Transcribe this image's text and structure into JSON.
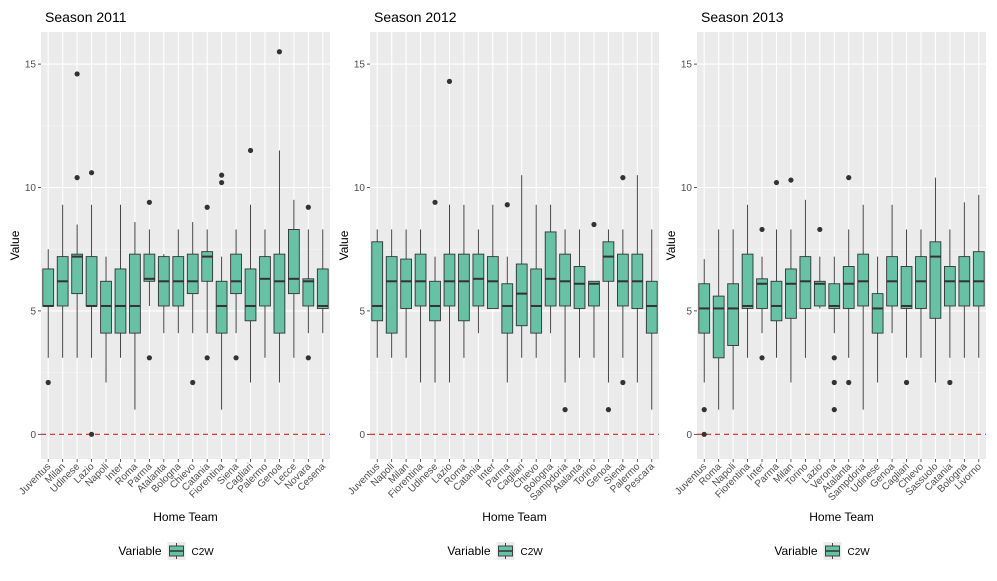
{
  "chart_data": [
    {
      "type": "boxplot",
      "title": "Season 2011",
      "xlabel": "Home Team",
      "ylabel": "Value",
      "ylim": [
        -1.0,
        16.3
      ],
      "yticks": [
        0,
        5,
        10,
        15
      ],
      "reference_line": {
        "y": 0,
        "color": "#e41a1c",
        "style": "dashed"
      },
      "legend": {
        "title": "Variable",
        "entries": [
          "C2W"
        ],
        "position": "bottom"
      },
      "fill": "#66c2a5",
      "series": [
        {
          "name": "Juventus",
          "q1": 5.2,
          "median": 5.2,
          "q3": 6.7,
          "whisker_low": 3.1,
          "whisker_high": 7.5,
          "outliers": [
            2.1
          ]
        },
        {
          "name": "Milan",
          "q1": 5.2,
          "median": 6.2,
          "q3": 7.2,
          "whisker_low": 3.1,
          "whisker_high": 9.3,
          "outliers": []
        },
        {
          "name": "Udinese",
          "q1": 5.7,
          "median": 7.2,
          "q3": 7.3,
          "whisker_low": 3.1,
          "whisker_high": 8.5,
          "outliers": [
            14.6,
            10.4
          ]
        },
        {
          "name": "Lazio",
          "q1": 5.2,
          "median": 5.2,
          "q3": 7.2,
          "whisker_low": 3.1,
          "whisker_high": 9.3,
          "outliers": [
            10.6,
            0.0
          ]
        },
        {
          "name": "Napoli",
          "q1": 4.1,
          "median": 5.2,
          "q3": 6.2,
          "whisker_low": 2.1,
          "whisker_high": 7.2,
          "outliers": []
        },
        {
          "name": "Inter",
          "q1": 4.1,
          "median": 5.2,
          "q3": 6.7,
          "whisker_low": 3.1,
          "whisker_high": 9.3,
          "outliers": []
        },
        {
          "name": "Roma",
          "q1": 4.1,
          "median": 5.2,
          "q3": 7.3,
          "whisker_low": 1.0,
          "whisker_high": 8.6,
          "outliers": []
        },
        {
          "name": "Parma",
          "q1": 6.2,
          "median": 6.3,
          "q3": 7.3,
          "whisker_low": 5.2,
          "whisker_high": 8.3,
          "outliers": [
            9.4,
            3.1
          ]
        },
        {
          "name": "Atalanta",
          "q1": 5.2,
          "median": 6.2,
          "q3": 7.2,
          "whisker_low": 4.1,
          "whisker_high": 7.3,
          "outliers": []
        },
        {
          "name": "Bologna",
          "q1": 5.2,
          "median": 6.2,
          "q3": 7.2,
          "whisker_low": 4.1,
          "whisker_high": 8.3,
          "outliers": []
        },
        {
          "name": "Chievo",
          "q1": 5.7,
          "median": 6.2,
          "q3": 7.3,
          "whisker_low": 4.1,
          "whisker_high": 8.6,
          "outliers": [
            2.1
          ]
        },
        {
          "name": "Catania",
          "q1": 6.2,
          "median": 7.2,
          "q3": 7.4,
          "whisker_low": 4.1,
          "whisker_high": 8.3,
          "outliers": [
            9.2,
            3.1
          ]
        },
        {
          "name": "Fiorentina",
          "q1": 4.1,
          "median": 5.2,
          "q3": 6.2,
          "whisker_low": 1.0,
          "whisker_high": 7.2,
          "outliers": [
            10.5,
            10.2
          ]
        },
        {
          "name": "Siena",
          "q1": 5.7,
          "median": 6.2,
          "q3": 7.3,
          "whisker_low": 4.1,
          "whisker_high": 8.3,
          "outliers": [
            3.1
          ]
        },
        {
          "name": "Cagliari",
          "q1": 4.6,
          "median": 5.2,
          "q3": 6.7,
          "whisker_low": 2.1,
          "whisker_high": 9.3,
          "outliers": [
            11.5
          ]
        },
        {
          "name": "Palermo",
          "q1": 5.2,
          "median": 6.3,
          "q3": 7.2,
          "whisker_low": 3.1,
          "whisker_high": 8.3,
          "outliers": []
        },
        {
          "name": "Genoa",
          "q1": 4.1,
          "median": 6.2,
          "q3": 7.3,
          "whisker_low": 2.1,
          "whisker_high": 11.5,
          "outliers": [
            15.5
          ]
        },
        {
          "name": "Lecce",
          "q1": 5.7,
          "median": 6.3,
          "q3": 8.3,
          "whisker_low": 3.1,
          "whisker_high": 9.5,
          "outliers": []
        },
        {
          "name": "Novara",
          "q1": 5.2,
          "median": 6.2,
          "q3": 6.3,
          "whisker_low": 4.1,
          "whisker_high": 8.3,
          "outliers": [
            9.2,
            3.1
          ]
        },
        {
          "name": "Cesena",
          "q1": 5.1,
          "median": 5.2,
          "q3": 6.7,
          "whisker_low": 4.1,
          "whisker_high": 8.3,
          "outliers": []
        }
      ]
    },
    {
      "type": "boxplot",
      "title": "Season 2012",
      "xlabel": "Home Team",
      "ylabel": "Value",
      "ylim": [
        -1.0,
        16.3
      ],
      "yticks": [
        0,
        5,
        10,
        15
      ],
      "reference_line": {
        "y": 0,
        "color": "#e41a1c",
        "style": "dashed"
      },
      "legend": {
        "title": "Variable",
        "entries": [
          "C2W"
        ],
        "position": "bottom"
      },
      "fill": "#66c2a5",
      "series": [
        {
          "name": "Juventus",
          "q1": 4.6,
          "median": 5.2,
          "q3": 7.8,
          "whisker_low": 3.1,
          "whisker_high": 8.3,
          "outliers": []
        },
        {
          "name": "Napoli",
          "q1": 4.1,
          "median": 6.2,
          "q3": 7.2,
          "whisker_low": 3.1,
          "whisker_high": 8.3,
          "outliers": []
        },
        {
          "name": "Milan",
          "q1": 5.1,
          "median": 6.2,
          "q3": 7.1,
          "whisker_low": 3.1,
          "whisker_high": 8.3,
          "outliers": []
        },
        {
          "name": "Fiorentina",
          "q1": 5.2,
          "median": 6.2,
          "q3": 7.3,
          "whisker_low": 2.1,
          "whisker_high": 8.3,
          "outliers": []
        },
        {
          "name": "Udinese",
          "q1": 4.6,
          "median": 5.2,
          "q3": 6.2,
          "whisker_low": 2.1,
          "whisker_high": 7.2,
          "outliers": [
            9.4
          ]
        },
        {
          "name": "Lazio",
          "q1": 5.2,
          "median": 6.2,
          "q3": 7.3,
          "whisker_low": 2.1,
          "whisker_high": 9.3,
          "outliers": [
            14.3
          ]
        },
        {
          "name": "Roma",
          "q1": 4.6,
          "median": 6.2,
          "q3": 7.3,
          "whisker_low": 3.1,
          "whisker_high": 9.3,
          "outliers": []
        },
        {
          "name": "Catania",
          "q1": 5.2,
          "median": 6.3,
          "q3": 7.3,
          "whisker_low": 4.1,
          "whisker_high": 8.3,
          "outliers": []
        },
        {
          "name": "Inter",
          "q1": 5.1,
          "median": 6.2,
          "q3": 7.2,
          "whisker_low": 5.1,
          "whisker_high": 9.3,
          "outliers": []
        },
        {
          "name": "Parma",
          "q1": 4.1,
          "median": 5.2,
          "q3": 6.1,
          "whisker_low": 2.1,
          "whisker_high": 7.2,
          "outliers": [
            9.3
          ]
        },
        {
          "name": "Cagliari",
          "q1": 4.4,
          "median": 5.7,
          "q3": 6.9,
          "whisker_low": 3.1,
          "whisker_high": 10.5,
          "outliers": []
        },
        {
          "name": "Chievo",
          "q1": 4.1,
          "median": 5.2,
          "q3": 6.7,
          "whisker_low": 3.1,
          "whisker_high": 9.3,
          "outliers": []
        },
        {
          "name": "Bologna",
          "q1": 5.2,
          "median": 6.3,
          "q3": 8.2,
          "whisker_low": 4.1,
          "whisker_high": 9.3,
          "outliers": []
        },
        {
          "name": "Sampdoria",
          "q1": 5.2,
          "median": 6.2,
          "q3": 7.3,
          "whisker_low": 2.1,
          "whisker_high": 8.3,
          "outliers": [
            1.0
          ]
        },
        {
          "name": "Atalanta",
          "q1": 5.1,
          "median": 6.1,
          "q3": 6.8,
          "whisker_low": 3.1,
          "whisker_high": 8.3,
          "outliers": []
        },
        {
          "name": "Torino",
          "q1": 5.2,
          "median": 6.1,
          "q3": 6.2,
          "whisker_low": 3.1,
          "whisker_high": 6.2,
          "outliers": [
            8.5
          ]
        },
        {
          "name": "Genoa",
          "q1": 6.2,
          "median": 7.2,
          "q3": 7.8,
          "whisker_low": 2.1,
          "whisker_high": 8.3,
          "outliers": [
            1.0
          ]
        },
        {
          "name": "Siena",
          "q1": 5.2,
          "median": 6.2,
          "q3": 7.3,
          "whisker_low": 3.1,
          "whisker_high": 8.3,
          "outliers": [
            10.4,
            2.1
          ]
        },
        {
          "name": "Palermo",
          "q1": 5.1,
          "median": 6.2,
          "q3": 7.3,
          "whisker_low": 2.1,
          "whisker_high": 10.5,
          "outliers": []
        },
        {
          "name": "Pescara",
          "q1": 4.1,
          "median": 5.2,
          "q3": 6.2,
          "whisker_low": 1.0,
          "whisker_high": 8.3,
          "outliers": []
        }
      ]
    },
    {
      "type": "boxplot",
      "title": "Season 2013",
      "xlabel": "Home Team",
      "ylabel": "Value",
      "ylim": [
        -1.0,
        16.3
      ],
      "yticks": [
        0,
        5,
        10,
        15
      ],
      "reference_line": {
        "y": 0,
        "color": "#e41a1c",
        "style": "dashed"
      },
      "legend": {
        "title": "Variable",
        "entries": [
          "C2W"
        ],
        "position": "bottom"
      },
      "fill": "#66c2a5",
      "series": [
        {
          "name": "Juventus",
          "q1": 4.1,
          "median": 5.1,
          "q3": 6.1,
          "whisker_low": 2.1,
          "whisker_high": 7.1,
          "outliers": [
            1.0,
            0.0
          ]
        },
        {
          "name": "Roma",
          "q1": 3.1,
          "median": 5.1,
          "q3": 5.6,
          "whisker_low": 1.0,
          "whisker_high": 8.3,
          "outliers": []
        },
        {
          "name": "Napoli",
          "q1": 3.6,
          "median": 5.1,
          "q3": 6.1,
          "whisker_low": 1.0,
          "whisker_high": 8.3,
          "outliers": []
        },
        {
          "name": "Fiorentina",
          "q1": 5.1,
          "median": 5.2,
          "q3": 7.3,
          "whisker_low": 3.1,
          "whisker_high": 9.3,
          "outliers": []
        },
        {
          "name": "Inter",
          "q1": 5.1,
          "median": 6.1,
          "q3": 6.3,
          "whisker_low": 4.1,
          "whisker_high": 7.2,
          "outliers": [
            8.3,
            3.1
          ]
        },
        {
          "name": "Parma",
          "q1": 4.6,
          "median": 5.2,
          "q3": 6.2,
          "whisker_low": 3.1,
          "whisker_high": 8.3,
          "outliers": [
            10.2
          ]
        },
        {
          "name": "Milan",
          "q1": 4.7,
          "median": 6.1,
          "q3": 6.7,
          "whisker_low": 2.1,
          "whisker_high": 8.3,
          "outliers": [
            10.3
          ]
        },
        {
          "name": "Torino",
          "q1": 5.1,
          "median": 6.2,
          "q3": 7.2,
          "whisker_low": 3.1,
          "whisker_high": 9.5,
          "outliers": []
        },
        {
          "name": "Lazio",
          "q1": 5.2,
          "median": 6.1,
          "q3": 6.2,
          "whisker_low": 5.1,
          "whisker_high": 7.2,
          "outliers": [
            8.3
          ]
        },
        {
          "name": "Verona",
          "q1": 5.1,
          "median": 5.2,
          "q3": 6.1,
          "whisker_low": 4.1,
          "whisker_high": 7.2,
          "outliers": [
            3.1,
            2.1,
            1.0
          ]
        },
        {
          "name": "Atalanta",
          "q1": 5.1,
          "median": 6.1,
          "q3": 6.8,
          "whisker_low": 3.1,
          "whisker_high": 8.3,
          "outliers": [
            10.4,
            2.1
          ]
        },
        {
          "name": "Sampdoria",
          "q1": 5.2,
          "median": 6.2,
          "q3": 7.3,
          "whisker_low": 1.0,
          "whisker_high": 9.3,
          "outliers": []
        },
        {
          "name": "Udinese",
          "q1": 4.1,
          "median": 5.1,
          "q3": 5.7,
          "whisker_low": 2.1,
          "whisker_high": 7.2,
          "outliers": []
        },
        {
          "name": "Genoa",
          "q1": 5.2,
          "median": 6.2,
          "q3": 7.2,
          "whisker_low": 4.1,
          "whisker_high": 9.3,
          "outliers": []
        },
        {
          "name": "Cagliari",
          "q1": 5.1,
          "median": 5.2,
          "q3": 6.8,
          "whisker_low": 3.1,
          "whisker_high": 8.3,
          "outliers": [
            2.1
          ]
        },
        {
          "name": "Chievo",
          "q1": 5.1,
          "median": 6.2,
          "q3": 7.2,
          "whisker_low": 3.1,
          "whisker_high": 8.3,
          "outliers": []
        },
        {
          "name": "Sassuolo",
          "q1": 4.7,
          "median": 7.2,
          "q3": 7.8,
          "whisker_low": 2.1,
          "whisker_high": 10.4,
          "outliers": []
        },
        {
          "name": "Catania",
          "q1": 5.2,
          "median": 6.2,
          "q3": 6.8,
          "whisker_low": 3.1,
          "whisker_high": 8.3,
          "outliers": [
            2.1
          ]
        },
        {
          "name": "Bologna",
          "q1": 5.2,
          "median": 6.2,
          "q3": 7.2,
          "whisker_low": 3.1,
          "whisker_high": 9.4,
          "outliers": []
        },
        {
          "name": "Livorno",
          "q1": 5.2,
          "median": 6.2,
          "q3": 7.4,
          "whisker_low": 3.1,
          "whisker_high": 9.7,
          "outliers": []
        }
      ]
    }
  ]
}
